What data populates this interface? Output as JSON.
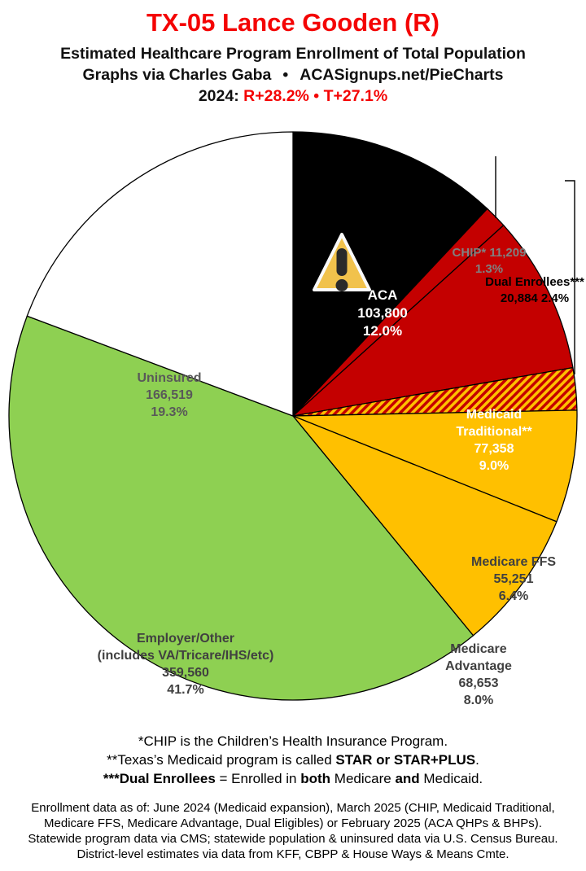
{
  "header": {
    "title": "TX-05 Lance Gooden (R)",
    "title_color": "#f40404",
    "subtitle": "Estimated Healthcare Program Enrollment of Total Population",
    "credit_left": "Graphs via Charles Gaba",
    "credit_sep": "•",
    "credit_right": "ACASignups.net/PieCharts",
    "partisan_prefix": "2024: ",
    "partisan_r": "R+28.2%",
    "partisan_sep": " • ",
    "partisan_t": "T+27.1%",
    "partisan_color": "#f40404"
  },
  "chart_data": {
    "type": "pie",
    "title": "Estimated Healthcare Program Enrollment of Total Population",
    "start_angle": "12 o'clock",
    "direction": "clockwise",
    "border_color": "#000000",
    "slices": [
      {
        "id": "aca",
        "name": "ACA",
        "enrollment": 103800,
        "percent": 12.0,
        "color": "#000000",
        "label_color": "#ffffff",
        "icon": "warning-triangle",
        "lines": [
          "ACA",
          "103,800",
          "12.0%"
        ]
      },
      {
        "id": "chip",
        "name": "CHIP*",
        "enrollment": 11209,
        "percent": 1.3,
        "color": "#c40000",
        "label_color": "#808080",
        "lines": [
          "CHIP* 11,209",
          "1.3%"
        ]
      },
      {
        "id": "medicaid-traditional",
        "name": "Medicaid Traditional**",
        "enrollment": 77358,
        "percent": 9.0,
        "color": "#c40000",
        "label_color": "#ffffff",
        "lines": [
          "Medicaid",
          "Traditional**",
          "77,358",
          "9.0%"
        ]
      },
      {
        "id": "dual-enrollees",
        "name": "Dual Enrollees***",
        "enrollment": 20884,
        "percent": 2.4,
        "color": "#c40000",
        "hatch": true,
        "hatch_colors": [
          "#c40000",
          "#ffc000"
        ],
        "label_color": "#000000",
        "lines": [
          "Dual Enrollees***",
          "20,884 2.4%"
        ]
      },
      {
        "id": "medicare-ffs",
        "name": "Medicare FFS",
        "enrollment": 55251,
        "percent": 6.4,
        "color": "#ffc000",
        "label_color": "#404040",
        "lines": [
          "Medicare FFS",
          "55,251",
          "6.4%"
        ]
      },
      {
        "id": "medicare-advantage",
        "name": "Medicare Advantage",
        "enrollment": 68653,
        "percent": 8.0,
        "color": "#ffc000",
        "label_color": "#404040",
        "lines": [
          "Medicare",
          "Advantage",
          "68,653",
          "8.0%"
        ]
      },
      {
        "id": "employer-other",
        "name": "Employer/Other (includes VA/Tricare/IHS/etc)",
        "enrollment": 359560,
        "percent": 41.7,
        "color": "#8ed052",
        "label_color": "#404040",
        "lines": [
          "Employer/Other",
          "(includes VA/Tricare/IHS/etc)",
          "359,560",
          "41.7%"
        ]
      },
      {
        "id": "uninsured",
        "name": "Uninsured",
        "enrollment": 166519,
        "percent": 19.3,
        "color": "#ffffff",
        "label_color": "#595959",
        "lines": [
          "Uninsured",
          "166,519",
          "19.3%"
        ]
      }
    ]
  },
  "footnotes": {
    "line1": "*CHIP is the Children’s Health Insurance Program.",
    "line2_pre": "**Texas’s Medicaid program is called ",
    "line2_bold": "STAR or STAR+PLUS",
    "line2_post": ".",
    "line3_bold1": "***Dual Enrollees",
    "line3_mid1": " = Enrolled in ",
    "line3_bold2": "both",
    "line3_mid2": " Medicare ",
    "line3_bold3": "and",
    "line3_post": " Medicaid."
  },
  "source": {
    "lines": [
      "Enrollment data as of: June 2024 (Medicaid expansion), March 2025 (CHIP, Medicaid Traditional,",
      "Medicare FFS, Medicare Advantage, Dual Eligibles) or February 2025 (ACA QHPs & BHPs).",
      "Statewide program data via CMS; statewide population & uninsured data via U.S. Census Bureau.",
      "District-level estimates via data from KFF, CBPP & House Ways & Means Cmte."
    ]
  }
}
